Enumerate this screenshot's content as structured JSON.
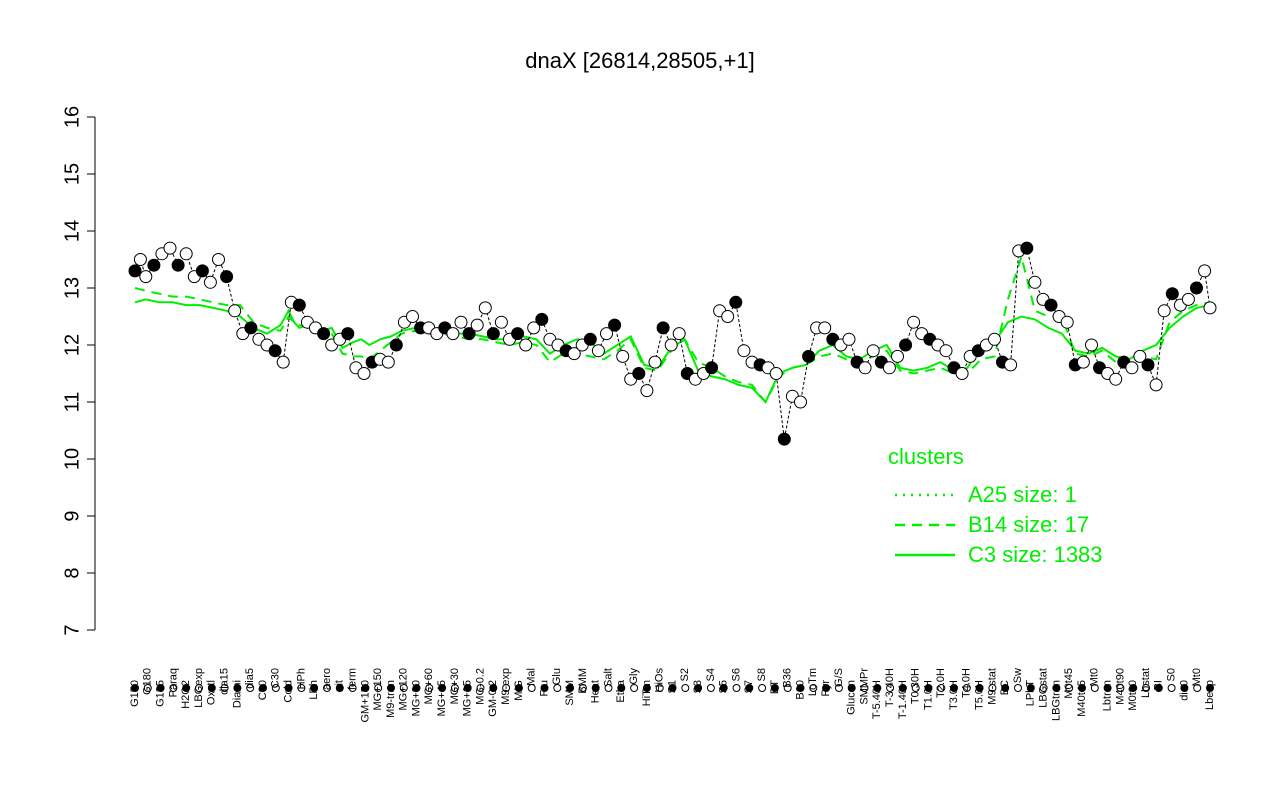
{
  "chart_data": {
    "type": "line",
    "title": "dnaX [26814,28505,+1]",
    "xlabel": "",
    "ylabel": "",
    "ylim": [
      7,
      16
    ],
    "y_ticks": [
      "7",
      "8",
      "9",
      "10",
      "11",
      "12",
      "13",
      "14",
      "15",
      "16"
    ],
    "x_tick_labels": [
      "G150",
      "G180",
      "G135",
      "Paraq",
      "H2O2",
      "LBGexp",
      "Oxctl",
      "dia15",
      "Diami",
      "dia5",
      "C90",
      "C30",
      "Cold",
      "HPh",
      "LPh",
      "aero",
      "nit",
      "ferm",
      "GM+150",
      "MG+150",
      "M9-tran",
      "MG+120",
      "MG+90",
      "MG+60",
      "MG+45",
      "MG+30",
      "MG+15",
      "MG-0.2",
      "GM-0.2",
      "M9-exp",
      "M/G",
      "Mal",
      "Fru",
      "Glu",
      "SMM",
      "BMM",
      "Heat",
      "Salt",
      "Etha",
      "Gly",
      "HiTm",
      "HiOs",
      "S1",
      "S2",
      "S3",
      "S4",
      "S5",
      "S6",
      "S7",
      "S8",
      "BT",
      "B36",
      "B60",
      "LoTm",
      "Pyr",
      "G/S",
      "Glucon",
      "SMMPr",
      "T-5.40H",
      "T-3.40H",
      "T-1.40H",
      "T0.30H",
      "T1.0H",
      "T2.0H",
      "T3.0H",
      "T4.0H",
      "T5.0H",
      "M9-stat",
      "BC",
      "Sw",
      "LPhT",
      "LBGstat",
      "LBGtran",
      "M0t45",
      "M40t45",
      "Mt0",
      "Lbtran",
      "M40t90",
      "M0t90",
      "Lbstat",
      "BI",
      "S0",
      "dia0",
      "Mt0",
      "Lbexp"
    ],
    "series": [
      {
        "name": "A25 size: 1",
        "style": "dotted",
        "color": "#00ee00",
        "x": [],
        "y": []
      },
      {
        "name": "B14 size: 17",
        "style": "dashed",
        "color": "#00ee00",
        "x": [
          1,
          5,
          10,
          15,
          20,
          25,
          30,
          35,
          40,
          45,
          50,
          55,
          58,
          60,
          62,
          65,
          70,
          74,
          78,
          82,
          85,
          88,
          92,
          96,
          100,
          105,
          110,
          115,
          120,
          125,
          130,
          135,
          140,
          145,
          150,
          155,
          160,
          165,
          170,
          175,
          180,
          185,
          190,
          195,
          200,
          205,
          210,
          215,
          220,
          225,
          230,
          235,
          240,
          245,
          250,
          255,
          260,
          265,
          270,
          275,
          280,
          285,
          290,
          295,
          300,
          305,
          310,
          315,
          320,
          325,
          330,
          335,
          340,
          345,
          350,
          355,
          360,
          365,
          370,
          375,
          380,
          385,
          390,
          395,
          400
        ],
        "y": [
          13.0,
          12.95,
          12.9,
          12.85,
          12.85,
          12.8,
          12.75,
          12.7,
          12.7,
          12.4,
          12.3,
          12.25,
          12.5,
          12.4,
          12.35,
          12.3,
          12.25,
          12.2,
          11.85,
          11.8,
          11.8,
          11.75,
          11.9,
          12.05,
          12.2,
          12.25,
          12.2,
          12.2,
          12.15,
          12.1,
          12.1,
          12.05,
          12.0,
          12.05,
          12.0,
          11.7,
          11.85,
          11.85,
          11.8,
          11.75,
          11.9,
          12.1,
          11.6,
          11.55,
          11.9,
          12.1,
          11.7,
          11.6,
          11.45,
          11.35,
          11.3,
          11.0,
          11.45,
          11.6,
          11.65,
          11.8,
          11.85,
          11.75,
          11.7,
          11.8,
          11.9,
          11.55,
          11.5,
          11.55,
          11.6,
          11.5,
          11.5,
          11.75,
          11.8,
          12.8,
          13.55,
          12.6,
          12.5,
          12.5,
          11.85,
          11.8,
          11.9,
          11.7,
          11.6,
          11.8,
          11.75,
          12.4,
          12.6,
          12.7,
          12.75
        ]
      },
      {
        "name": "C3 size: 1383",
        "style": "solid",
        "color": "#00ee00",
        "x": [
          1,
          5,
          10,
          15,
          20,
          25,
          30,
          35,
          40,
          45,
          50,
          55,
          58,
          60,
          62,
          65,
          70,
          74,
          78,
          82,
          85,
          88,
          92,
          96,
          100,
          105,
          110,
          115,
          120,
          125,
          130,
          135,
          140,
          145,
          150,
          155,
          160,
          165,
          170,
          175,
          180,
          185,
          190,
          195,
          200,
          205,
          210,
          215,
          220,
          225,
          230,
          235,
          240,
          245,
          250,
          255,
          260,
          265,
          270,
          275,
          280,
          285,
          290,
          295,
          300,
          305,
          310,
          315,
          320,
          325,
          330,
          335,
          340,
          345,
          350,
          355,
          360,
          365,
          370,
          375,
          380,
          385,
          390,
          395,
          400
        ],
        "y": [
          12.75,
          12.8,
          12.75,
          12.75,
          12.7,
          12.7,
          12.65,
          12.6,
          12.5,
          12.3,
          12.2,
          12.35,
          12.6,
          12.4,
          12.3,
          12.35,
          12.25,
          12.3,
          11.95,
          12.05,
          12.1,
          12.0,
          12.1,
          12.15,
          12.25,
          12.3,
          12.25,
          12.25,
          12.2,
          12.2,
          12.15,
          12.1,
          12.1,
          12.15,
          12.1,
          11.85,
          12.0,
          12.1,
          12.05,
          11.85,
          12.0,
          12.15,
          11.65,
          11.6,
          11.95,
          12.1,
          11.55,
          11.45,
          11.4,
          11.3,
          11.25,
          11.0,
          11.5,
          11.6,
          11.65,
          11.9,
          12.0,
          11.8,
          11.75,
          11.9,
          12.0,
          11.6,
          11.55,
          11.6,
          11.7,
          11.55,
          11.6,
          12.0,
          12.05,
          12.4,
          12.5,
          12.45,
          12.3,
          12.2,
          11.9,
          11.85,
          11.95,
          11.8,
          11.75,
          11.9,
          12.0,
          12.3,
          12.5,
          12.65,
          12.7
        ]
      }
    ],
    "points": {
      "x": [
        1,
        3,
        5,
        8,
        11,
        14,
        17,
        20,
        23,
        26,
        29,
        32,
        35,
        38,
        41,
        44,
        47,
        50,
        53,
        56,
        59,
        62,
        65,
        68,
        71,
        74,
        77,
        80,
        83,
        86,
        89,
        92,
        95,
        98,
        101,
        104,
        107,
        110,
        113,
        116,
        119,
        122,
        125,
        128,
        131,
        134,
        137,
        140,
        143,
        146,
        149,
        152,
        155,
        158,
        161,
        164,
        167,
        170,
        173,
        176,
        179,
        182,
        185,
        188,
        191,
        194,
        197,
        200,
        203,
        206,
        209,
        212,
        215,
        218,
        221,
        224,
        227,
        230,
        233,
        236,
        239,
        242,
        245,
        248,
        251,
        254,
        257,
        260,
        263,
        266,
        269,
        272,
        275,
        278,
        281,
        284,
        287,
        290,
        293,
        296,
        299,
        302,
        305,
        308,
        311,
        314,
        317,
        320,
        323,
        326,
        329,
        332,
        335,
        338,
        341,
        344,
        347,
        350,
        353,
        356,
        359,
        362,
        365,
        368,
        371,
        374,
        377,
        380,
        383,
        386,
        389,
        392,
        395,
        398,
        400
      ],
      "y": [
        13.3,
        13.5,
        13.2,
        13.4,
        13.6,
        13.7,
        13.4,
        13.6,
        13.2,
        13.3,
        13.1,
        13.5,
        13.2,
        12.6,
        12.2,
        12.3,
        12.1,
        12.0,
        11.9,
        11.7,
        12.75,
        12.7,
        12.4,
        12.3,
        12.2,
        12.0,
        12.1,
        12.2,
        11.6,
        11.5,
        11.7,
        11.75,
        11.7,
        12.0,
        12.4,
        12.5,
        12.3,
        12.3,
        12.2,
        12.3,
        12.2,
        12.4,
        12.2,
        12.35,
        12.65,
        12.2,
        12.4,
        12.1,
        12.2,
        12.0,
        12.3,
        12.45,
        12.1,
        12.0,
        11.9,
        11.85,
        12.0,
        12.1,
        11.9,
        12.2,
        12.35,
        11.8,
        11.4,
        11.5,
        11.2,
        11.7,
        12.3,
        12.0,
        12.2,
        11.5,
        11.4,
        11.5,
        11.6,
        12.6,
        12.5,
        12.75,
        11.9,
        11.7,
        11.65,
        11.6,
        11.5,
        10.35,
        11.1,
        11.0,
        11.8,
        12.3,
        12.3,
        12.1,
        12.0,
        12.1,
        11.7,
        11.6,
        11.9,
        11.7,
        11.6,
        11.8,
        12.0,
        12.4,
        12.2,
        12.1,
        12.0,
        11.9,
        11.6,
        11.5,
        11.8,
        11.9,
        12.0,
        12.1,
        11.7,
        11.65,
        13.65,
        13.7,
        13.1,
        12.8,
        12.7,
        12.5,
        12.4,
        11.65,
        11.7,
        12.0,
        11.6,
        11.5,
        11.4,
        11.7,
        11.6,
        11.8,
        11.65,
        11.3,
        12.6,
        12.9,
        12.7,
        12.8,
        13.0,
        13.3,
        12.65
      ]
    },
    "legend": {
      "title": "clusters",
      "position": "right",
      "entries": [
        "A25 size: 1",
        "B14 size: 17",
        "C3 size: 1383"
      ]
    },
    "grid": false
  }
}
